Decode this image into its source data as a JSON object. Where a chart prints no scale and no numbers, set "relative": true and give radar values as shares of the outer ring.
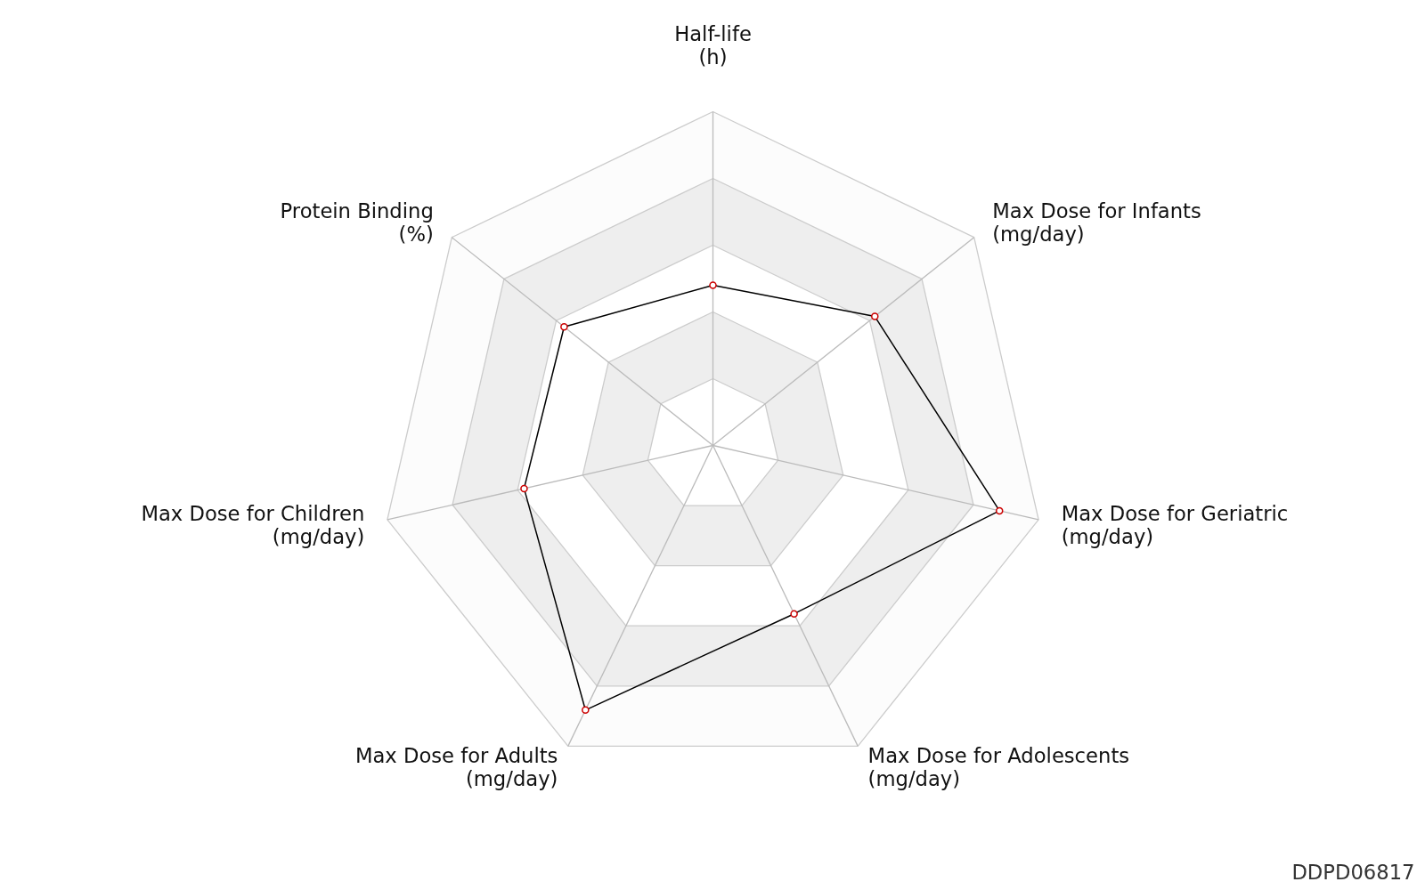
{
  "chart_data": {
    "type": "radar",
    "relative": true,
    "categories": [
      "Half-life\n(h)",
      "Max Dose for Infants\n(mg/day)",
      "Max Dose for Geriatric\n(mg/day)",
      "Max Dose for Adolescents\n(mg/day)",
      "Max Dose for Adults\n(mg/day)",
      "Max Dose for Children\n(mg/day)",
      "Protein Binding\n(%)"
    ],
    "series": [
      {
        "color": "#000000",
        "values": [
          0.48,
          0.62,
          0.88,
          0.56,
          0.88,
          0.58,
          0.57
        ]
      }
    ],
    "grid": true,
    "marker": "circle",
    "annotations": [
      "DDPD06817"
    ]
  }
}
